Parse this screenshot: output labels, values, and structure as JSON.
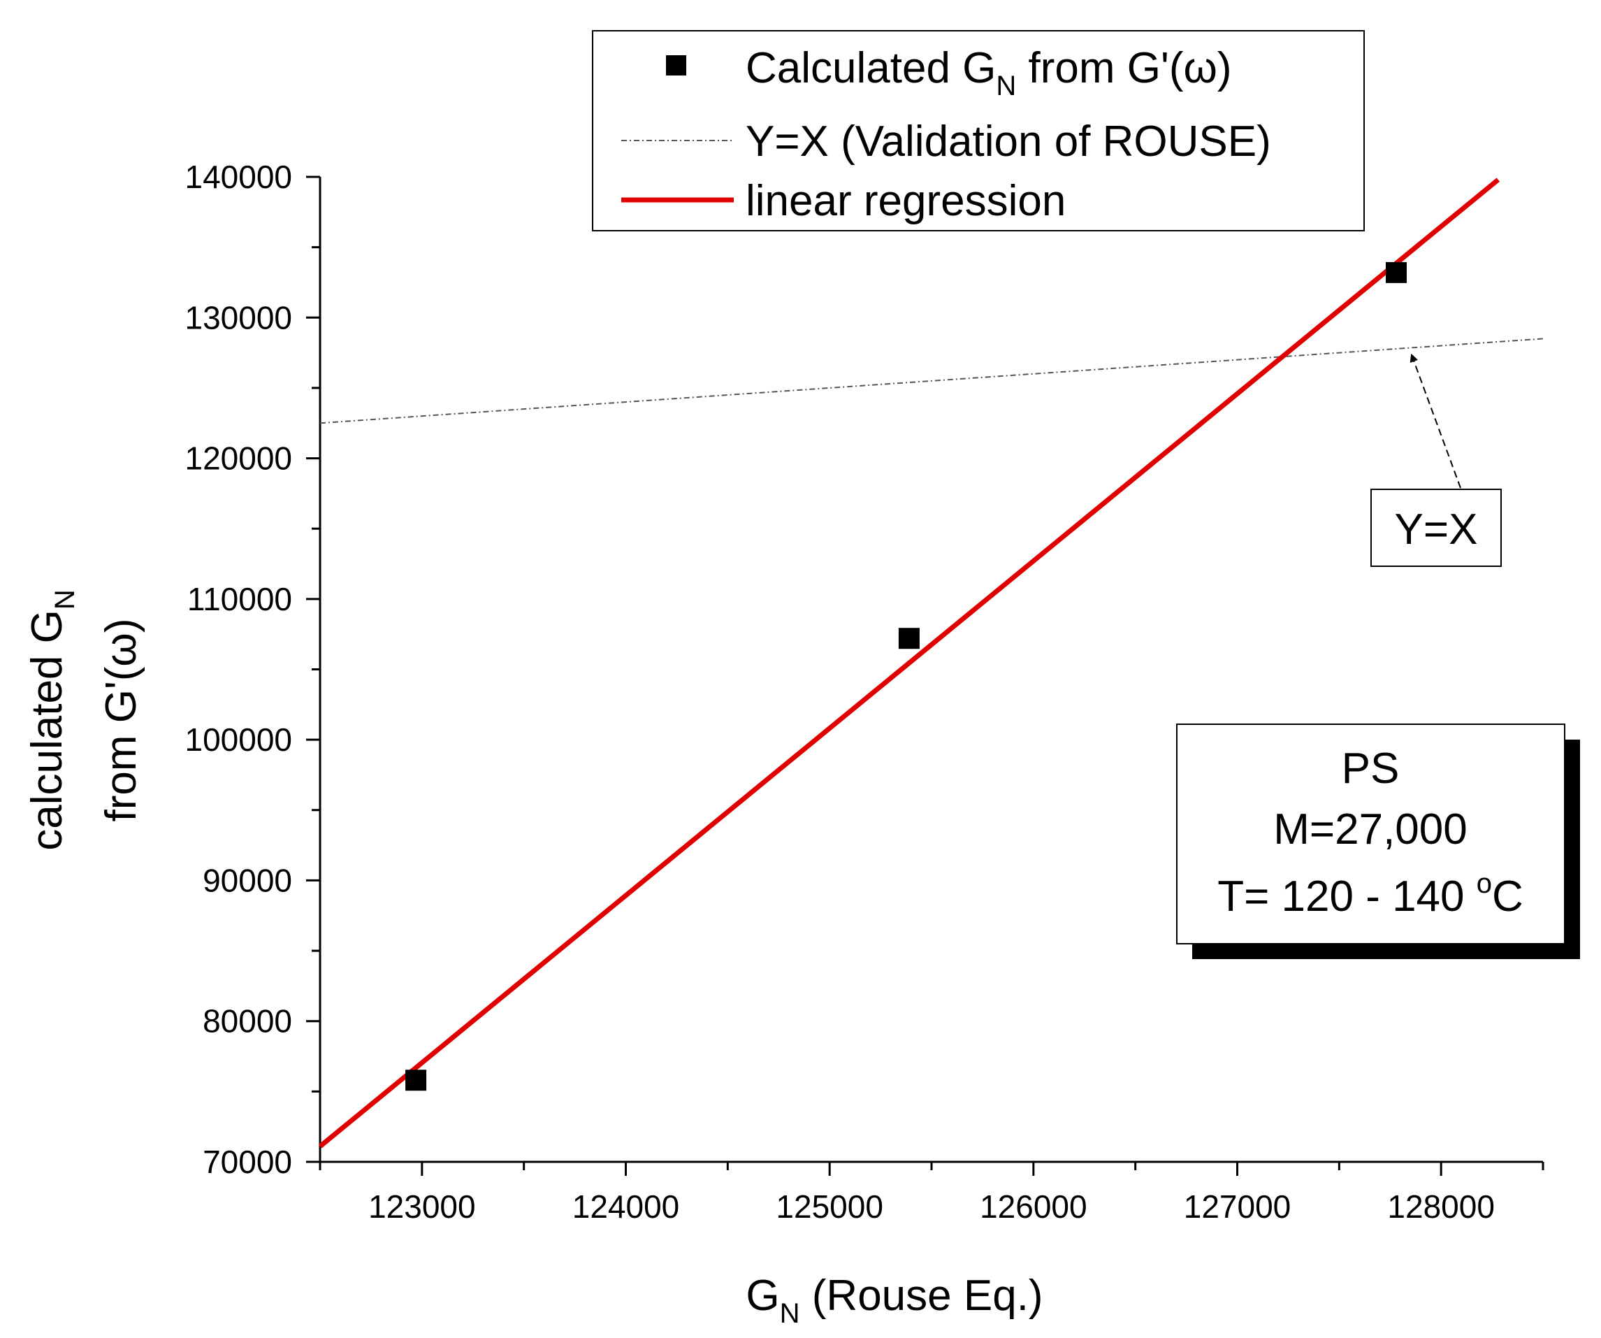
{
  "chart_data": {
    "type": "scatter",
    "xlabel": {
      "main": "G",
      "sub": "N",
      "rest": " (Rouse Eq.)"
    },
    "ylabel": {
      "line1_main": "calculated G",
      "line1_sub": "N",
      "line2_pre": "from G'(",
      "line2_sym": "ω",
      "line2_post": ")"
    },
    "xlim": [
      122500,
      128500
    ],
    "ylim": [
      70000,
      140000
    ],
    "x_ticks": [
      123000,
      124000,
      125000,
      126000,
      127000,
      128000
    ],
    "y_ticks": [
      70000,
      80000,
      90000,
      100000,
      110000,
      120000,
      130000,
      140000
    ],
    "series": [
      {
        "kind": "scatter",
        "color": "#000000",
        "points": [
          {
            "x": 122970,
            "y": 75800
          },
          {
            "x": 125390,
            "y": 107200
          },
          {
            "x": 127780,
            "y": 133200
          }
        ]
      },
      {
        "kind": "line",
        "color": "#555555",
        "points": [
          {
            "x": 122500,
            "y": 122500
          },
          {
            "x": 128500,
            "y": 128500
          }
        ]
      },
      {
        "kind": "line",
        "color": "#e00000",
        "points": [
          {
            "x": 122500,
            "y": 71100
          },
          {
            "x": 128280,
            "y": 139800
          }
        ]
      }
    ],
    "legend": {
      "position": "top-center",
      "entries": [
        {
          "main": "Calculated G",
          "sub": "N",
          "pre": " from G'(",
          "sym": "ω",
          "post": ")"
        },
        {
          "text": "Y=X (Validation of ROUSE)"
        },
        {
          "text": "linear regression"
        }
      ]
    },
    "annotations": {
      "yx_label": "Y=X",
      "arrow_target": {
        "x": 127860,
        "y": 127860
      },
      "info_box": {
        "line1": "PS",
        "line2": "M=27,000",
        "line3_pre": "T= 120 - 140 ",
        "line3_sup": "o",
        "line3_post": "C"
      }
    }
  }
}
